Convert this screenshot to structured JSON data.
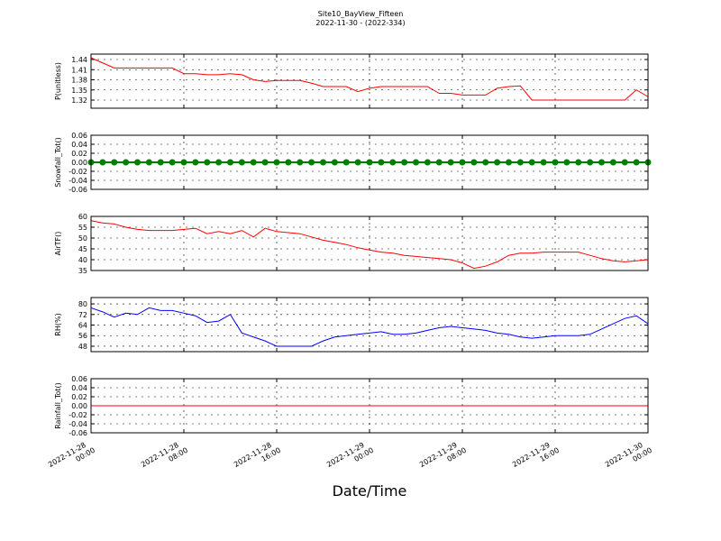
{
  "chart_data": [
    {
      "type": "line",
      "title": "Site10_BayView_Fifteen",
      "subtitle": "2022-11-30 - (2022-334)",
      "ylabel": "P(unitless)",
      "x": [
        "2022-11-28 00:00",
        "2022-11-28 01:00",
        "2022-11-28 02:00",
        "2022-11-28 03:00",
        "2022-11-28 04:00",
        "2022-11-28 05:00",
        "2022-11-28 06:00",
        "2022-11-28 07:00",
        "2022-11-28 08:00",
        "2022-11-28 09:00",
        "2022-11-28 10:00",
        "2022-11-28 11:00",
        "2022-11-28 12:00",
        "2022-11-28 13:00",
        "2022-11-28 14:00",
        "2022-11-28 15:00",
        "2022-11-28 16:00",
        "2022-11-28 17:00",
        "2022-11-28 18:00",
        "2022-11-28 19:00",
        "2022-11-28 20:00",
        "2022-11-28 21:00",
        "2022-11-28 22:00",
        "2022-11-28 23:00",
        "2022-11-29 00:00",
        "2022-11-29 01:00",
        "2022-11-29 02:00",
        "2022-11-29 03:00",
        "2022-11-29 04:00",
        "2022-11-29 05:00",
        "2022-11-29 06:00",
        "2022-11-29 07:00",
        "2022-11-29 08:00",
        "2022-11-29 09:00",
        "2022-11-29 10:00",
        "2022-11-29 11:00",
        "2022-11-29 12:00",
        "2022-11-29 13:00",
        "2022-11-29 14:00",
        "2022-11-29 15:00",
        "2022-11-29 16:00",
        "2022-11-29 17:00",
        "2022-11-29 18:00",
        "2022-11-29 19:00",
        "2022-11-29 20:00",
        "2022-11-29 21:00",
        "2022-11-29 22:00",
        "2022-11-29 23:00",
        "2022-11-30 00:00"
      ],
      "xlim": [
        "2022-11-28 00:00",
        "2022-11-30 00:00"
      ],
      "xticks": [
        "2022-11-28 00:00",
        "2022-11-28 08:00",
        "2022-11-28 16:00",
        "2022-11-29 00:00",
        "2022-11-29 08:00",
        "2022-11-29 16:00",
        "2022-11-30 00:00"
      ],
      "ylim": [
        1.296,
        1.456
      ],
      "yticks": [
        1.32,
        1.35,
        1.38,
        1.41,
        1.44
      ],
      "grid": true,
      "series": [
        {
          "color": "#ff0000",
          "values": [
            1.445,
            1.43,
            1.415,
            1.415,
            1.415,
            1.415,
            1.415,
            1.415,
            1.398,
            1.398,
            1.395,
            1.395,
            1.398,
            1.395,
            1.38,
            1.375,
            1.378,
            1.378,
            1.378,
            1.37,
            1.36,
            1.36,
            1.36,
            1.345,
            1.355,
            1.36,
            1.36,
            1.36,
            1.36,
            1.36,
            1.34,
            1.34,
            1.335,
            1.335,
            1.335,
            1.355,
            1.36,
            1.362,
            1.32,
            1.32,
            1.32,
            1.32,
            1.32,
            1.32,
            1.32,
            1.32,
            1.32,
            1.35,
            1.33
          ]
        }
      ]
    },
    {
      "type": "line",
      "ylabel": "Snowfall_Tot()",
      "x": [
        "2022-11-28 00:00",
        "2022-11-28 01:00",
        "2022-11-28 02:00",
        "2022-11-28 03:00",
        "2022-11-28 04:00",
        "2022-11-28 05:00",
        "2022-11-28 06:00",
        "2022-11-28 07:00",
        "2022-11-28 08:00",
        "2022-11-28 09:00",
        "2022-11-28 10:00",
        "2022-11-28 11:00",
        "2022-11-28 12:00",
        "2022-11-28 13:00",
        "2022-11-28 14:00",
        "2022-11-28 15:00",
        "2022-11-28 16:00",
        "2022-11-28 17:00",
        "2022-11-28 18:00",
        "2022-11-28 19:00",
        "2022-11-28 20:00",
        "2022-11-28 21:00",
        "2022-11-28 22:00",
        "2022-11-28 23:00",
        "2022-11-29 00:00",
        "2022-11-29 01:00",
        "2022-11-29 02:00",
        "2022-11-29 03:00",
        "2022-11-29 04:00",
        "2022-11-29 05:00",
        "2022-11-29 06:00",
        "2022-11-29 07:00",
        "2022-11-29 08:00",
        "2022-11-29 09:00",
        "2022-11-29 10:00",
        "2022-11-29 11:00",
        "2022-11-29 12:00",
        "2022-11-29 13:00",
        "2022-11-29 14:00",
        "2022-11-29 15:00",
        "2022-11-29 16:00",
        "2022-11-29 17:00",
        "2022-11-29 18:00",
        "2022-11-29 19:00",
        "2022-11-29 20:00",
        "2022-11-29 21:00",
        "2022-11-29 22:00",
        "2022-11-29 23:00",
        "2022-11-30 00:00"
      ],
      "xlim": [
        "2022-11-28 00:00",
        "2022-11-30 00:00"
      ],
      "xticks": [
        "2022-11-28 00:00",
        "2022-11-28 08:00",
        "2022-11-28 16:00",
        "2022-11-29 00:00",
        "2022-11-29 08:00",
        "2022-11-29 16:00",
        "2022-11-30 00:00"
      ],
      "ylim": [
        -0.06,
        0.06
      ],
      "yticks": [
        -0.06,
        -0.04,
        -0.02,
        {
          "value": 0,
          "label": "0.00"
        },
        0.02,
        0.04,
        0.06
      ],
      "grid": true,
      "series": [
        {
          "color": "#008000",
          "marker": "o",
          "values": [
            0,
            0,
            0,
            0,
            0,
            0,
            0,
            0,
            0,
            0,
            0,
            0,
            0,
            0,
            0,
            0,
            0,
            0,
            0,
            0,
            0,
            0,
            0,
            0,
            0,
            0,
            0,
            0,
            0,
            0,
            0,
            0,
            0,
            0,
            0,
            0,
            0,
            0,
            0,
            0,
            0,
            0,
            0,
            0,
            0,
            0,
            0,
            0,
            0
          ]
        }
      ]
    },
    {
      "type": "line",
      "ylabel": "AirTF()",
      "x": [
        "2022-11-28 00:00",
        "2022-11-28 01:00",
        "2022-11-28 02:00",
        "2022-11-28 03:00",
        "2022-11-28 04:00",
        "2022-11-28 05:00",
        "2022-11-28 06:00",
        "2022-11-28 07:00",
        "2022-11-28 08:00",
        "2022-11-28 09:00",
        "2022-11-28 10:00",
        "2022-11-28 11:00",
        "2022-11-28 12:00",
        "2022-11-28 13:00",
        "2022-11-28 14:00",
        "2022-11-28 15:00",
        "2022-11-28 16:00",
        "2022-11-28 17:00",
        "2022-11-28 18:00",
        "2022-11-28 19:00",
        "2022-11-28 20:00",
        "2022-11-28 21:00",
        "2022-11-28 22:00",
        "2022-11-28 23:00",
        "2022-11-29 00:00",
        "2022-11-29 01:00",
        "2022-11-29 02:00",
        "2022-11-29 03:00",
        "2022-11-29 04:00",
        "2022-11-29 05:00",
        "2022-11-29 06:00",
        "2022-11-29 07:00",
        "2022-11-29 08:00",
        "2022-11-29 09:00",
        "2022-11-29 10:00",
        "2022-11-29 11:00",
        "2022-11-29 12:00",
        "2022-11-29 13:00",
        "2022-11-29 14:00",
        "2022-11-29 15:00",
        "2022-11-29 16:00",
        "2022-11-29 17:00",
        "2022-11-29 18:00",
        "2022-11-29 19:00",
        "2022-11-29 20:00",
        "2022-11-29 21:00",
        "2022-11-29 22:00",
        "2022-11-29 23:00",
        "2022-11-30 00:00"
      ],
      "xlim": [
        "2022-11-28 00:00",
        "2022-11-30 00:00"
      ],
      "xticks": [
        "2022-11-28 00:00",
        "2022-11-28 08:00",
        "2022-11-28 16:00",
        "2022-11-29 00:00",
        "2022-11-29 08:00",
        "2022-11-29 16:00",
        "2022-11-30 00:00"
      ],
      "ylim": [
        35,
        60
      ],
      "yticks": [
        35,
        40,
        45,
        50,
        55,
        60
      ],
      "grid": true,
      "series": [
        {
          "color": "#ff0000",
          "values": [
            58,
            57,
            56.5,
            55,
            54,
            53.5,
            53.5,
            53.5,
            54,
            54.5,
            52,
            53,
            52,
            53.5,
            50.5,
            54.5,
            53,
            52.5,
            52,
            50.5,
            49,
            48,
            47,
            45.5,
            44.5,
            43.5,
            43,
            42,
            41.5,
            41,
            40.5,
            40,
            38.5,
            36,
            37,
            39,
            42,
            43,
            43,
            43.5,
            43.5,
            43.5,
            43.5,
            42,
            40.5,
            39.5,
            39,
            39.5,
            40
          ]
        }
      ]
    },
    {
      "type": "line",
      "ylabel": "RH(%)",
      "x": [
        "2022-11-28 00:00",
        "2022-11-28 01:00",
        "2022-11-28 02:00",
        "2022-11-28 03:00",
        "2022-11-28 04:00",
        "2022-11-28 05:00",
        "2022-11-28 06:00",
        "2022-11-28 07:00",
        "2022-11-28 08:00",
        "2022-11-28 09:00",
        "2022-11-28 10:00",
        "2022-11-28 11:00",
        "2022-11-28 12:00",
        "2022-11-28 13:00",
        "2022-11-28 14:00",
        "2022-11-28 15:00",
        "2022-11-28 16:00",
        "2022-11-28 17:00",
        "2022-11-28 18:00",
        "2022-11-28 19:00",
        "2022-11-28 20:00",
        "2022-11-28 21:00",
        "2022-11-28 22:00",
        "2022-11-28 23:00",
        "2022-11-29 00:00",
        "2022-11-29 01:00",
        "2022-11-29 02:00",
        "2022-11-29 03:00",
        "2022-11-29 04:00",
        "2022-11-29 05:00",
        "2022-11-29 06:00",
        "2022-11-29 07:00",
        "2022-11-29 08:00",
        "2022-11-29 09:00",
        "2022-11-29 10:00",
        "2022-11-29 11:00",
        "2022-11-29 12:00",
        "2022-11-29 13:00",
        "2022-11-29 14:00",
        "2022-11-29 15:00",
        "2022-11-29 16:00",
        "2022-11-29 17:00",
        "2022-11-29 18:00",
        "2022-11-29 19:00",
        "2022-11-29 20:00",
        "2022-11-29 21:00",
        "2022-11-29 22:00",
        "2022-11-29 23:00",
        "2022-11-30 00:00"
      ],
      "xlim": [
        "2022-11-28 00:00",
        "2022-11-30 00:00"
      ],
      "xticks": [
        "2022-11-28 00:00",
        "2022-11-28 08:00",
        "2022-11-28 16:00",
        "2022-11-29 00:00",
        "2022-11-29 08:00",
        "2022-11-29 16:00",
        "2022-11-30 00:00"
      ],
      "ylim": [
        43.9,
        84.8
      ],
      "yticks": [
        48,
        56,
        64,
        72,
        80
      ],
      "grid": true,
      "series": [
        {
          "color": "#0000ff",
          "values": [
            77,
            74,
            70,
            73,
            72,
            77,
            75,
            75,
            73,
            71,
            66,
            67,
            72,
            58,
            55,
            52,
            48,
            48,
            48,
            48,
            52,
            55,
            56,
            57,
            58,
            59,
            57,
            57,
            58,
            60,
            62,
            63,
            62,
            61,
            60,
            58,
            57,
            55,
            54,
            55,
            56,
            56,
            56,
            57,
            61,
            65,
            69,
            71,
            65
          ]
        }
      ]
    },
    {
      "type": "line",
      "ylabel": "Rainfall_Tot()",
      "xlabel": "Date/Time",
      "x": [
        "2022-11-28 00:00",
        "2022-11-28 01:00",
        "2022-11-28 02:00",
        "2022-11-28 03:00",
        "2022-11-28 04:00",
        "2022-11-28 05:00",
        "2022-11-28 06:00",
        "2022-11-28 07:00",
        "2022-11-28 08:00",
        "2022-11-28 09:00",
        "2022-11-28 10:00",
        "2022-11-28 11:00",
        "2022-11-28 12:00",
        "2022-11-28 13:00",
        "2022-11-28 14:00",
        "2022-11-28 15:00",
        "2022-11-28 16:00",
        "2022-11-28 17:00",
        "2022-11-28 18:00",
        "2022-11-28 19:00",
        "2022-11-28 20:00",
        "2022-11-28 21:00",
        "2022-11-28 22:00",
        "2022-11-28 23:00",
        "2022-11-29 00:00",
        "2022-11-29 01:00",
        "2022-11-29 02:00",
        "2022-11-29 03:00",
        "2022-11-29 04:00",
        "2022-11-29 05:00",
        "2022-11-29 06:00",
        "2022-11-29 07:00",
        "2022-11-29 08:00",
        "2022-11-29 09:00",
        "2022-11-29 10:00",
        "2022-11-29 11:00",
        "2022-11-29 12:00",
        "2022-11-29 13:00",
        "2022-11-29 14:00",
        "2022-11-29 15:00",
        "2022-11-29 16:00",
        "2022-11-29 17:00",
        "2022-11-29 18:00",
        "2022-11-29 19:00",
        "2022-11-29 20:00",
        "2022-11-29 21:00",
        "2022-11-29 22:00",
        "2022-11-29 23:00",
        "2022-11-30 00:00"
      ],
      "xlim": [
        "2022-11-28 00:00",
        "2022-11-30 00:00"
      ],
      "xticks": [
        "2022-11-28 00:00",
        "2022-11-28 08:00",
        "2022-11-28 16:00",
        "2022-11-29 00:00",
        "2022-11-29 08:00",
        "2022-11-29 16:00",
        "2022-11-30 00:00"
      ],
      "ylim": [
        -0.06,
        0.06
      ],
      "yticks": [
        -0.06,
        -0.04,
        -0.02,
        {
          "value": 0,
          "label": "0.00"
        },
        0.02,
        0.04,
        0.06
      ],
      "grid": true,
      "series": [
        {
          "color": "#ff0000",
          "values": [
            0,
            0,
            0,
            0,
            0,
            0,
            0,
            0,
            0,
            0,
            0,
            0,
            0,
            0,
            0,
            0,
            0,
            0,
            0,
            0,
            0,
            0,
            0,
            0,
            0,
            0,
            0,
            0,
            0,
            0,
            0,
            0,
            0,
            0,
            0,
            0,
            0,
            0,
            0,
            0,
            0,
            0,
            0,
            0,
            0,
            0,
            0,
            0,
            0
          ]
        }
      ]
    }
  ]
}
